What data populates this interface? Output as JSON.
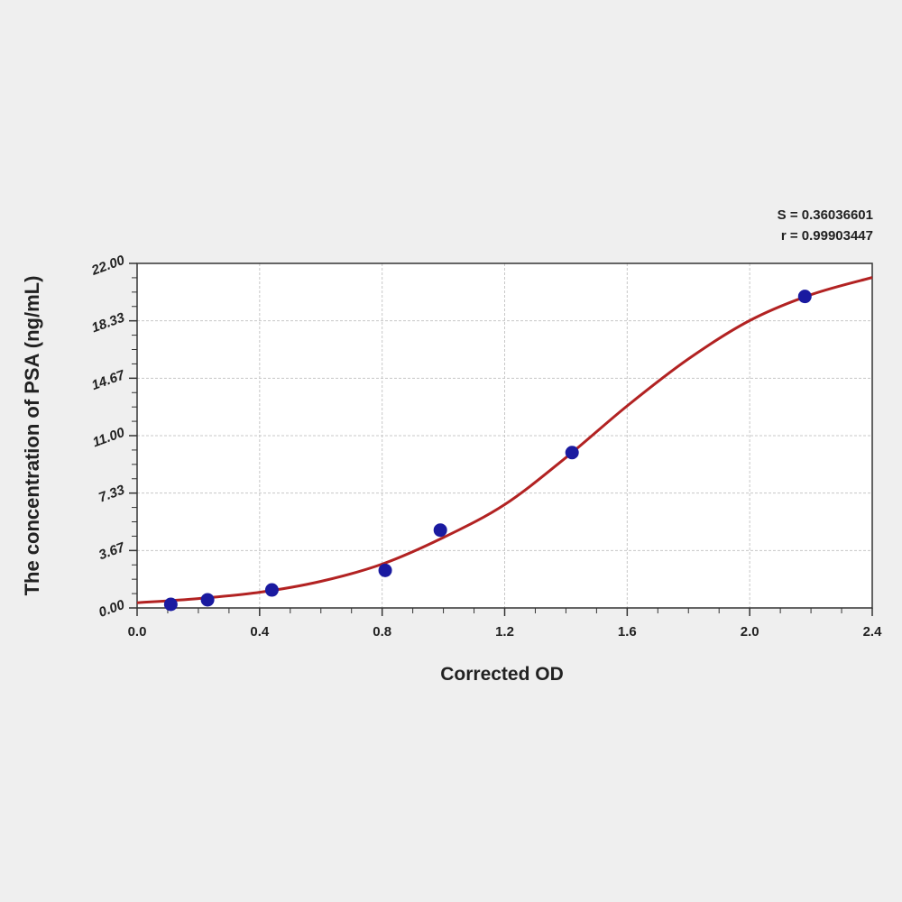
{
  "chart_data": {
    "type": "scatter",
    "title": "",
    "xlabel": "Corrected OD",
    "ylabel": "The concentration of PSA (ng/mL)",
    "xlim": [
      0,
      2.4
    ],
    "ylim": [
      0,
      22
    ],
    "x_ticks": [
      "0.0",
      "0.4",
      "0.8",
      "1.2",
      "1.6",
      "2.0",
      "2.4"
    ],
    "y_ticks": [
      "0.00",
      "3.67",
      "7.33",
      "11.00",
      "14.67",
      "18.33",
      "22.00"
    ],
    "grid": true,
    "annotations": [
      "S = 0.36036601",
      "r = 0.99903447"
    ],
    "points": {
      "x": [
        0.11,
        0.23,
        0.44,
        0.81,
        0.99,
        1.42,
        2.18
      ],
      "y": [
        0.23,
        0.52,
        1.15,
        2.4,
        4.97,
        9.92,
        19.89
      ]
    },
    "fit_curve": {
      "x": [
        0.0,
        0.2,
        0.4,
        0.6,
        0.8,
        1.0,
        1.2,
        1.4,
        1.6,
        1.8,
        2.0,
        2.2,
        2.4
      ],
      "y": [
        0.33,
        0.6,
        1.0,
        1.7,
        2.8,
        4.5,
        6.6,
        9.6,
        12.9,
        15.9,
        18.35,
        20.0,
        21.1
      ]
    },
    "colors": {
      "points": "#1a1aa0",
      "curve": "#b22222",
      "grid": "#c8c8c8",
      "background": "#efefef",
      "plot_bg": "#ffffff"
    }
  }
}
